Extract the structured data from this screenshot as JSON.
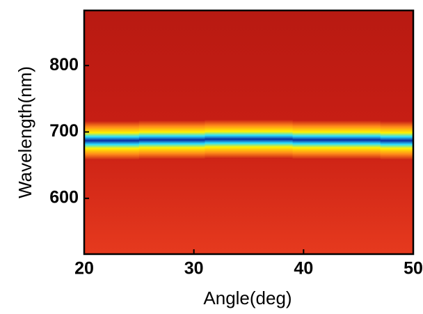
{
  "chart_data": {
    "type": "heatmap",
    "x_label": "Angle(deg)",
    "y_label": "Wavelength(nm)",
    "x": [
      20,
      22,
      24,
      26,
      28,
      30,
      32,
      34,
      36,
      38,
      40,
      42,
      44,
      46,
      48,
      50
    ],
    "values": [
      687,
      687,
      687,
      688,
      688,
      688,
      689,
      689,
      689,
      689,
      688,
      688,
      688,
      688,
      687,
      687
    ],
    "xlim": [
      20,
      50
    ],
    "xticks": [
      20,
      30,
      40,
      50
    ],
    "ylim": [
      516,
      883
    ],
    "yticks": [
      600,
      700,
      800
    ],
    "colors": [
      "#c81e14",
      "#ff8a1a",
      "#fff200",
      "#2de0ff",
      "#0a2aa0"
    ]
  }
}
